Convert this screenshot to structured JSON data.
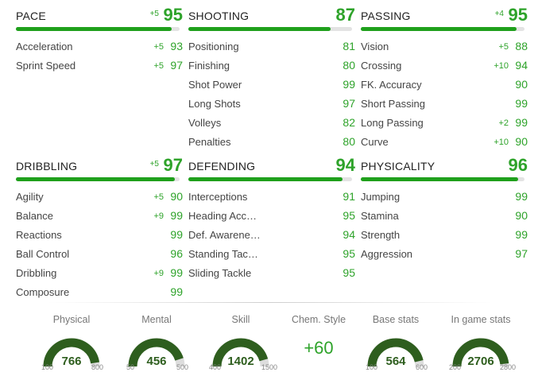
{
  "categories": [
    {
      "key": "pace",
      "name": "PACE",
      "bonus": "+5",
      "value": "95",
      "fill": 0.95,
      "rows": [
        {
          "label": "Acceleration",
          "bonus": "+5",
          "value": "93"
        },
        {
          "label": "Sprint Speed",
          "bonus": "+5",
          "value": "97"
        }
      ]
    },
    {
      "key": "shooting",
      "name": "SHOOTING",
      "bonus": "",
      "value": "87",
      "fill": 0.87,
      "rows": [
        {
          "label": "Positioning",
          "bonus": "",
          "value": "81"
        },
        {
          "label": "Finishing",
          "bonus": "",
          "value": "80"
        },
        {
          "label": "Shot Power",
          "bonus": "",
          "value": "99"
        },
        {
          "label": "Long Shots",
          "bonus": "",
          "value": "97"
        },
        {
          "label": "Volleys",
          "bonus": "",
          "value": "82"
        },
        {
          "label": "Penalties",
          "bonus": "",
          "value": "80"
        }
      ]
    },
    {
      "key": "passing",
      "name": "PASSING",
      "bonus": "+4",
      "value": "95",
      "fill": 0.95,
      "rows": [
        {
          "label": "Vision",
          "bonus": "+5",
          "value": "88"
        },
        {
          "label": "Crossing",
          "bonus": "+10",
          "value": "94"
        },
        {
          "label": "FK. Accuracy",
          "bonus": "",
          "value": "90"
        },
        {
          "label": "Short Passing",
          "bonus": "",
          "value": "99"
        },
        {
          "label": "Long Passing",
          "bonus": "+2",
          "value": "99"
        },
        {
          "label": "Curve",
          "bonus": "+10",
          "value": "90"
        }
      ]
    },
    {
      "key": "dribbling",
      "name": "DRIBBLING",
      "bonus": "+5",
      "value": "97",
      "fill": 0.97,
      "rows": [
        {
          "label": "Agility",
          "bonus": "+5",
          "value": "90"
        },
        {
          "label": "Balance",
          "bonus": "+9",
          "value": "99"
        },
        {
          "label": "Reactions",
          "bonus": "",
          "value": "99"
        },
        {
          "label": "Ball Control",
          "bonus": "",
          "value": "96"
        },
        {
          "label": "Dribbling",
          "bonus": "+9",
          "value": "99"
        },
        {
          "label": "Composure",
          "bonus": "",
          "value": "99"
        }
      ]
    },
    {
      "key": "defending",
      "name": "DEFENDING",
      "bonus": "",
      "value": "94",
      "fill": 0.94,
      "rows": [
        {
          "label": "Interceptions",
          "bonus": "",
          "value": "91"
        },
        {
          "label": "Heading Acc…",
          "bonus": "",
          "value": "95"
        },
        {
          "label": "Def. Awarene…",
          "bonus": "",
          "value": "94"
        },
        {
          "label": "Standing Tac…",
          "bonus": "",
          "value": "95"
        },
        {
          "label": "Sliding Tackle",
          "bonus": "",
          "value": "95"
        }
      ]
    },
    {
      "key": "physicality",
      "name": "PHYSICALITY",
      "bonus": "",
      "value": "96",
      "fill": 0.96,
      "rows": [
        {
          "label": "Jumping",
          "bonus": "",
          "value": "99"
        },
        {
          "label": "Stamina",
          "bonus": "",
          "value": "90"
        },
        {
          "label": "Strength",
          "bonus": "",
          "value": "99"
        },
        {
          "label": "Aggression",
          "bonus": "",
          "value": "97"
        }
      ]
    }
  ],
  "summary": {
    "physical": {
      "label": "Physical",
      "value": "766",
      "min": "100",
      "max": "800",
      "fill": 0.951
    },
    "mental": {
      "label": "Mental",
      "value": "456",
      "min": "50",
      "max": "500",
      "fill": 0.902
    },
    "skill": {
      "label": "Skill",
      "value": "1402",
      "min": "400",
      "max": "1500",
      "fill": 0.911
    },
    "chem": {
      "label": "Chem. Style",
      "value": "+60"
    },
    "base": {
      "label": "Base stats",
      "value": "564",
      "min": "100",
      "max": "600",
      "fill": 0.928
    },
    "ingame": {
      "label": "In game stats",
      "value": "2706",
      "min": "200",
      "max": "2800",
      "fill": 0.964
    }
  },
  "colors": {
    "accent": "#1fa01c",
    "accent_text": "#2ea32a",
    "gauge_dark": "#2e5e1e",
    "gauge_track": "#dddddd"
  }
}
